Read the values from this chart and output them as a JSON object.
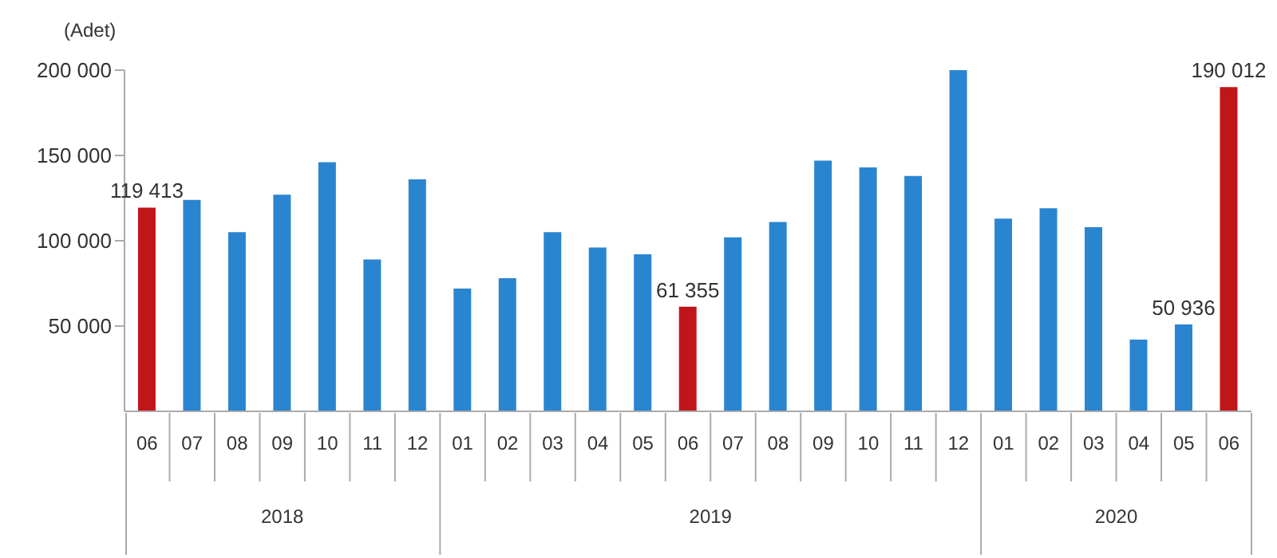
{
  "chart_data": {
    "type": "bar",
    "ylabel": "(Adet)",
    "categories": [
      "06",
      "07",
      "08",
      "09",
      "10",
      "11",
      "12",
      "01",
      "02",
      "03",
      "04",
      "05",
      "06",
      "07",
      "08",
      "09",
      "10",
      "11",
      "12",
      "01",
      "02",
      "03",
      "04",
      "05",
      "06"
    ],
    "annotations": [
      "2018",
      "2019",
      "2020"
    ],
    "values": [
      119413,
      124000,
      105000,
      127000,
      146000,
      89000,
      136000,
      72000,
      78000,
      105000,
      96000,
      92000,
      61355,
      102000,
      111000,
      147000,
      143000,
      138000,
      200000,
      113000,
      119000,
      108000,
      42000,
      50936,
      190012
    ],
    "colors": [
      "#c0161a",
      "#2a85d0",
      "#2a85d0",
      "#2a85d0",
      "#2a85d0",
      "#2a85d0",
      "#2a85d0",
      "#2a85d0",
      "#2a85d0",
      "#2a85d0",
      "#2a85d0",
      "#2a85d0",
      "#c0161a",
      "#2a85d0",
      "#2a85d0",
      "#2a85d0",
      "#2a85d0",
      "#2a85d0",
      "#2a85d0",
      "#2a85d0",
      "#2a85d0",
      "#2a85d0",
      "#2a85d0",
      "#2a85d0",
      "#c0161a"
    ],
    "value_labels": [
      "119 413",
      null,
      null,
      null,
      null,
      null,
      null,
      null,
      null,
      null,
      null,
      null,
      "61 355",
      null,
      null,
      null,
      null,
      null,
      null,
      null,
      null,
      null,
      null,
      "50 936",
      "190 012"
    ],
    "ylim": [
      0,
      200000
    ],
    "yticks": [
      {
        "value": 50000,
        "label": "50 000"
      },
      {
        "value": 100000,
        "label": "100 000"
      },
      {
        "value": 150000,
        "label": "150 000"
      },
      {
        "value": 200000,
        "label": "200 000"
      }
    ],
    "grid": false,
    "legend": false
  }
}
